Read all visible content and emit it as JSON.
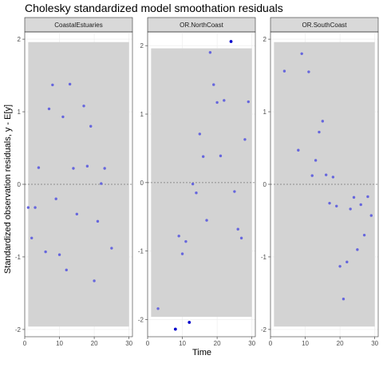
{
  "title": "Cholesky standardized model smoothation residuals",
  "chart_data": {
    "type": "scatter",
    "title": "Cholesky standardized model smoothation residuals",
    "xlabel": "Time",
    "ylabel": "Standardized observation residuals, y - E[y]",
    "reference_line": 0,
    "colors": {
      "point_within": "#6666dd",
      "point_outside": "#0000cc",
      "band": "#d3d3d3"
    },
    "panels": [
      {
        "name": "CoastalEstuaries",
        "xlim": [
          0,
          31
        ],
        "ylim": [
          -2.1,
          2.1
        ],
        "xticks": [
          0,
          10,
          20,
          30
        ],
        "yticks": [
          -2,
          -1,
          0,
          1,
          2
        ],
        "band": [
          -1.96,
          1.96
        ],
        "points": [
          [
            1,
            -0.32
          ],
          [
            2,
            -0.74
          ],
          [
            3,
            -0.32
          ],
          [
            4,
            0.23
          ],
          [
            6,
            -0.93
          ],
          [
            7,
            1.04
          ],
          [
            8,
            1.37
          ],
          [
            9,
            -0.2
          ],
          [
            10,
            -0.97
          ],
          [
            11,
            0.93
          ],
          [
            12,
            -1.18
          ],
          [
            13,
            1.38
          ],
          [
            14,
            0.22
          ],
          [
            15,
            -0.41
          ],
          [
            17,
            1.08
          ],
          [
            18,
            0.25
          ],
          [
            19,
            0.8
          ],
          [
            20,
            -1.33
          ],
          [
            21,
            -0.51
          ],
          [
            22,
            0.01
          ],
          [
            23,
            0.22
          ],
          [
            25,
            -0.88
          ]
        ]
      },
      {
        "name": "OR.NorthCoast",
        "xlim": [
          0,
          31
        ],
        "ylim": [
          -2.25,
          2.2
        ],
        "xticks": [
          0,
          10,
          20,
          30
        ],
        "yticks": [
          -2,
          -1,
          0,
          1,
          2
        ],
        "band": [
          -1.96,
          1.96
        ],
        "points": [
          [
            3,
            -1.84
          ],
          [
            8,
            -2.14
          ],
          [
            9,
            -0.78
          ],
          [
            10,
            -1.04
          ],
          [
            11,
            -0.86
          ],
          [
            12,
            -2.04
          ],
          [
            13,
            -0.02
          ],
          [
            14,
            -0.15
          ],
          [
            15,
            0.71
          ],
          [
            16,
            0.38
          ],
          [
            17,
            -0.55
          ],
          [
            18,
            1.9
          ],
          [
            19,
            1.43
          ],
          [
            20,
            1.17
          ],
          [
            21,
            0.39
          ],
          [
            22,
            1.2
          ],
          [
            24,
            2.06
          ],
          [
            25,
            -0.13
          ],
          [
            26,
            -0.68
          ],
          [
            27,
            -0.81
          ],
          [
            28,
            0.63
          ],
          [
            29,
            1.18
          ]
        ]
      },
      {
        "name": "OR.SouthCoast",
        "xlim": [
          0,
          31
        ],
        "ylim": [
          -2.1,
          2.1
        ],
        "xticks": [
          0,
          10,
          20,
          30
        ],
        "yticks": [
          -2,
          -1,
          0,
          1,
          2
        ],
        "band": [
          -1.96,
          1.96
        ],
        "points": [
          [
            4,
            1.56
          ],
          [
            8,
            0.47
          ],
          [
            9,
            1.8
          ],
          [
            11,
            1.55
          ],
          [
            12,
            0.12
          ],
          [
            13,
            0.33
          ],
          [
            14,
            0.72
          ],
          [
            15,
            0.87
          ],
          [
            16,
            0.13
          ],
          [
            17,
            -0.26
          ],
          [
            18,
            0.1
          ],
          [
            19,
            -0.3
          ],
          [
            20,
            -1.13
          ],
          [
            21,
            -1.58
          ],
          [
            22,
            -1.07
          ],
          [
            23,
            -0.34
          ],
          [
            24,
            -0.18
          ],
          [
            25,
            -0.9
          ],
          [
            26,
            -0.28
          ],
          [
            27,
            -0.7
          ],
          [
            28,
            -0.17
          ],
          [
            29,
            -0.43
          ]
        ]
      }
    ]
  }
}
